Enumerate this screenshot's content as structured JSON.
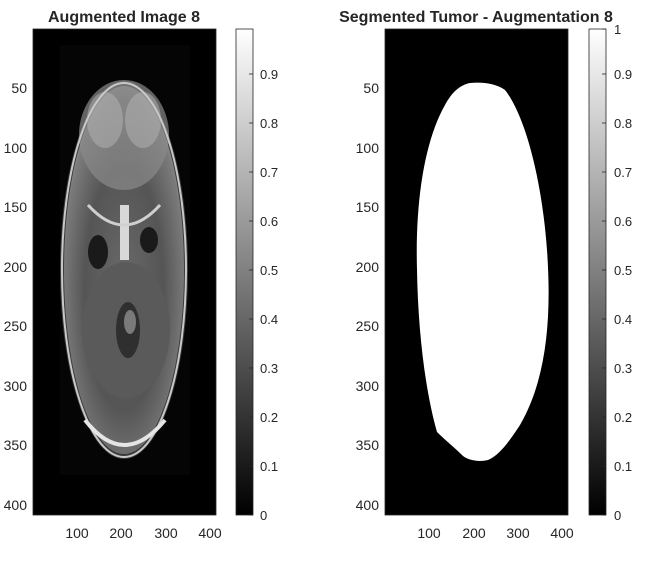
{
  "panels": [
    {
      "id": "augmented",
      "title": "Augmented Image 8",
      "yticks": [
        "50",
        "100",
        "150",
        "200",
        "250",
        "300",
        "350",
        "400"
      ],
      "xticks": [
        "100",
        "200",
        "300",
        "400"
      ],
      "colorbar_ticks": [
        "0",
        "0.1",
        "0.2",
        "0.3",
        "0.4",
        "0.5",
        "0.6",
        "0.7",
        "0.8",
        "0.9"
      ]
    },
    {
      "id": "segmented",
      "title": "Segmented Tumor - Augmentation 8",
      "yticks": [
        "50",
        "100",
        "150",
        "200",
        "250",
        "300",
        "350",
        "400"
      ],
      "xticks": [
        "100",
        "200",
        "300",
        "400"
      ],
      "colorbar_ticks": [
        "0",
        "0.1",
        "0.2",
        "0.3",
        "0.4",
        "0.5",
        "0.6",
        "0.7",
        "0.8",
        "0.9",
        "1"
      ]
    }
  ],
  "colors": {
    "background": "#000000",
    "mask": "#ffffff",
    "axis_text": "#262626"
  }
}
